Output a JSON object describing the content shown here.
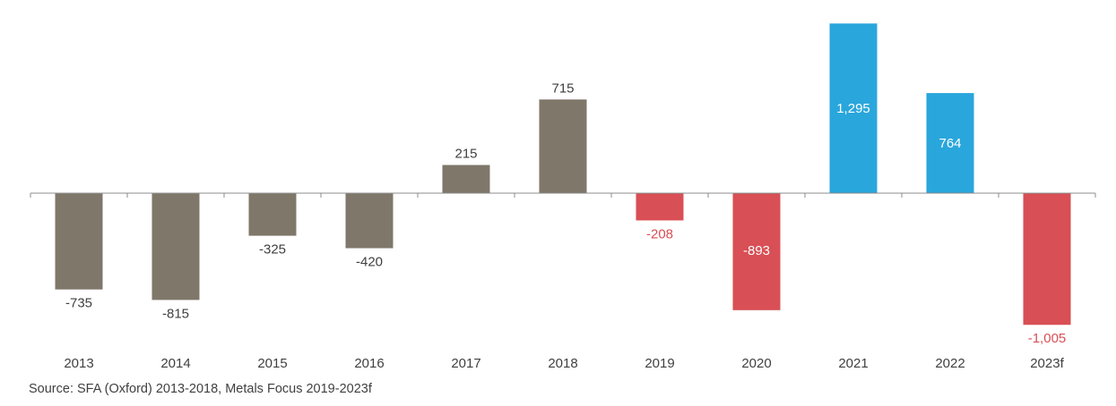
{
  "chart_data": {
    "type": "bar",
    "categories": [
      "2013",
      "2014",
      "2015",
      "2016",
      "2017",
      "2018",
      "2019",
      "2020",
      "2021",
      "2022",
      "2023f"
    ],
    "values": [
      -735,
      -815,
      -325,
      -420,
      215,
      715,
      -208,
      -893,
      1295,
      764,
      -1005
    ],
    "value_labels": [
      "-735",
      "-815",
      "-325",
      "-420",
      "215",
      "715",
      "-208",
      "-893",
      "1,295",
      "764",
      "-1,005"
    ],
    "bar_colors": [
      "#7f776a",
      "#7f776a",
      "#7f776a",
      "#7f776a",
      "#7f776a",
      "#7f776a",
      "#d84f55",
      "#d84f55",
      "#29a6dc",
      "#29a6dc",
      "#d84f55"
    ],
    "label_colors": [
      "#404040",
      "#404040",
      "#404040",
      "#404040",
      "#404040",
      "#404040",
      "#d84f55",
      "#ffffff",
      "#ffffff",
      "#ffffff",
      "#d84f55"
    ],
    "label_position": [
      "outside",
      "outside",
      "outside",
      "outside",
      "outside",
      "outside",
      "outside",
      "inside",
      "inside",
      "inside",
      "outside"
    ],
    "ylim": [
      -1020,
      1310
    ],
    "grid": false,
    "title": "",
    "xlabel": "",
    "ylabel": ""
  },
  "source": "Source: SFA (Oxford) 2013-2018, Metals Focus 2019-2023f"
}
